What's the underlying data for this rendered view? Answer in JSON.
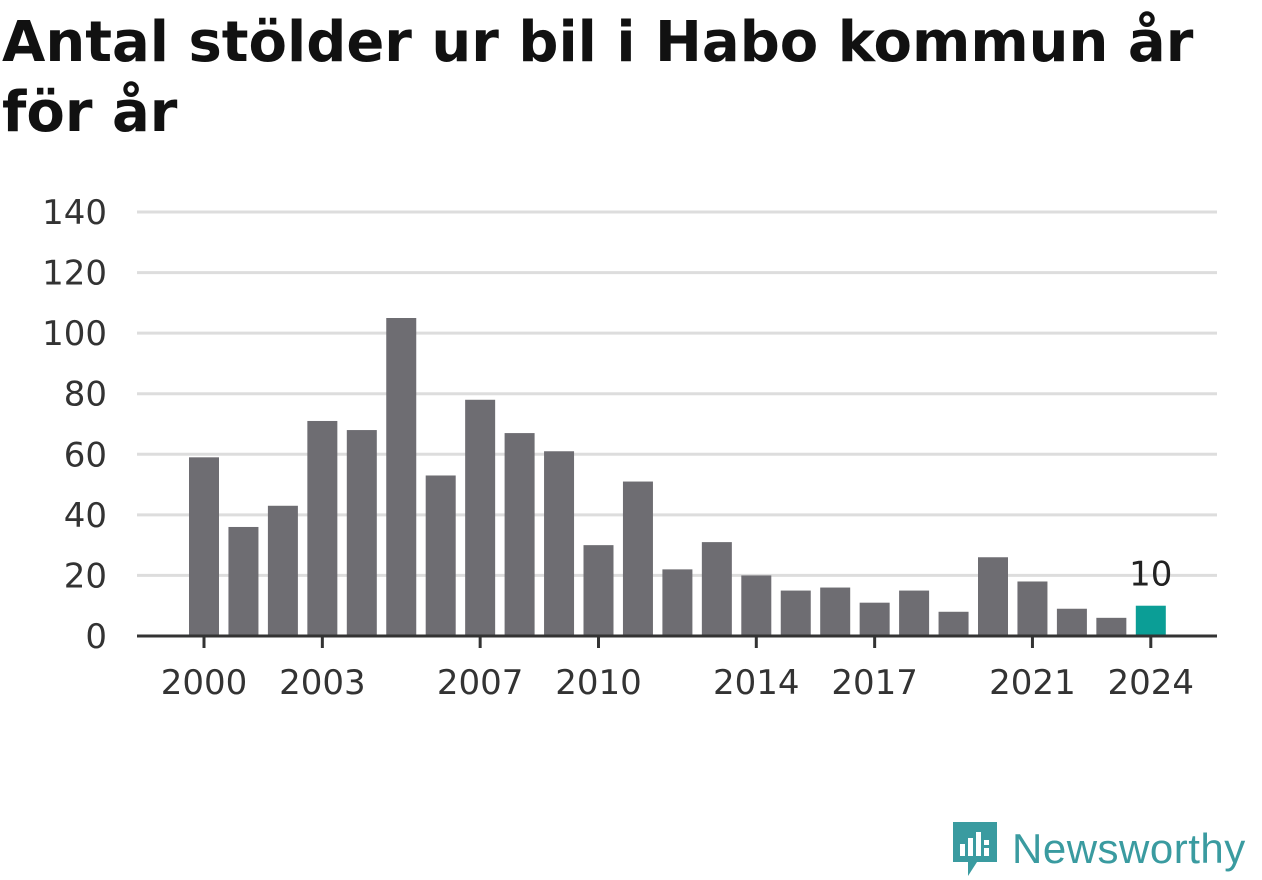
{
  "title": "Antal stölder ur bil i Habo kommun år för år",
  "brand": {
    "name": "Newsworthy",
    "icon": "newsworthy-logo-icon",
    "color": "#3a9ba0"
  },
  "colors": {
    "bar": "#6e6d72",
    "highlight": "#0b9e96",
    "grid": "#dddddd",
    "axis": "#333333"
  },
  "chart_data": {
    "type": "bar",
    "categories": [
      "2000",
      "2001",
      "2002",
      "2003",
      "2004",
      "2005",
      "2006",
      "2007",
      "2008",
      "2009",
      "2010",
      "2011",
      "2012",
      "2013",
      "2014",
      "2015",
      "2016",
      "2017",
      "2018",
      "2019",
      "2020",
      "2021",
      "2022",
      "2023",
      "2024"
    ],
    "values": [
      59,
      36,
      43,
      71,
      68,
      105,
      53,
      78,
      67,
      61,
      30,
      51,
      22,
      31,
      20,
      15,
      16,
      11,
      15,
      8,
      26,
      18,
      9,
      6,
      10
    ],
    "x_tick_labels": [
      "2000",
      "2003",
      "2007",
      "2010",
      "2014",
      "2017",
      "2021",
      "2024"
    ],
    "y_ticks": [
      0,
      20,
      40,
      60,
      80,
      100,
      120,
      140
    ],
    "ylim": [
      0,
      140
    ],
    "highlight": {
      "category": "2024",
      "label": "10"
    },
    "grid": true,
    "xlabel": "",
    "ylabel": ""
  }
}
